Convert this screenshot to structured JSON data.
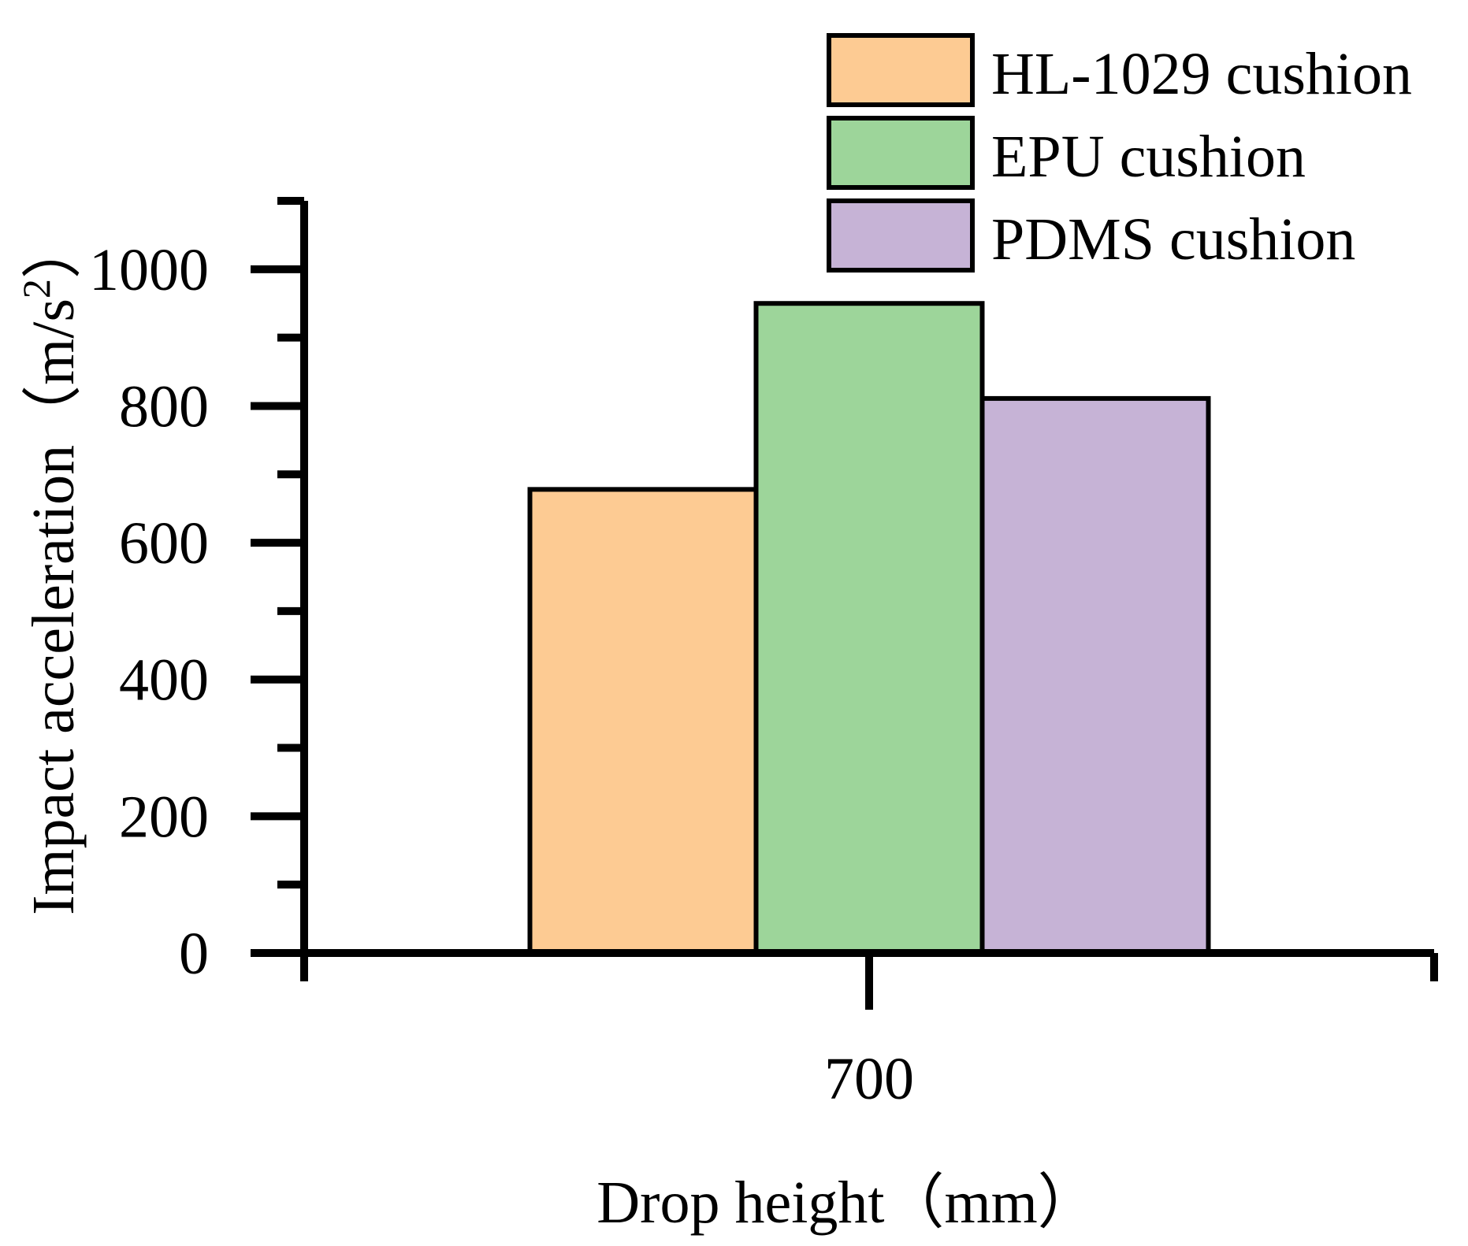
{
  "chart_data": {
    "type": "bar",
    "title": "",
    "xlabel": "Drop height（mm）",
    "ylabel_main": "Impact acceleration（m/s",
    "ylabel_sup": "2",
    "ylabel_close": "）",
    "categories": [
      "700"
    ],
    "series": [
      {
        "name": "HL-1029 cushion",
        "values": [
          678
        ],
        "color": "#FDCB93"
      },
      {
        "name": "EPU cushion",
        "values": [
          950
        ],
        "color": "#9DD59A"
      },
      {
        "name": "PDMS cushion",
        "values": [
          811
        ],
        "color": "#C6B3D6"
      }
    ],
    "ylim": [
      0,
      1100
    ],
    "yticks": [
      0,
      200,
      400,
      600,
      800,
      1000
    ],
    "yticks_minor": [
      100,
      300,
      500,
      700,
      900,
      1100
    ],
    "grid": false,
    "legend_position": "top-right"
  }
}
